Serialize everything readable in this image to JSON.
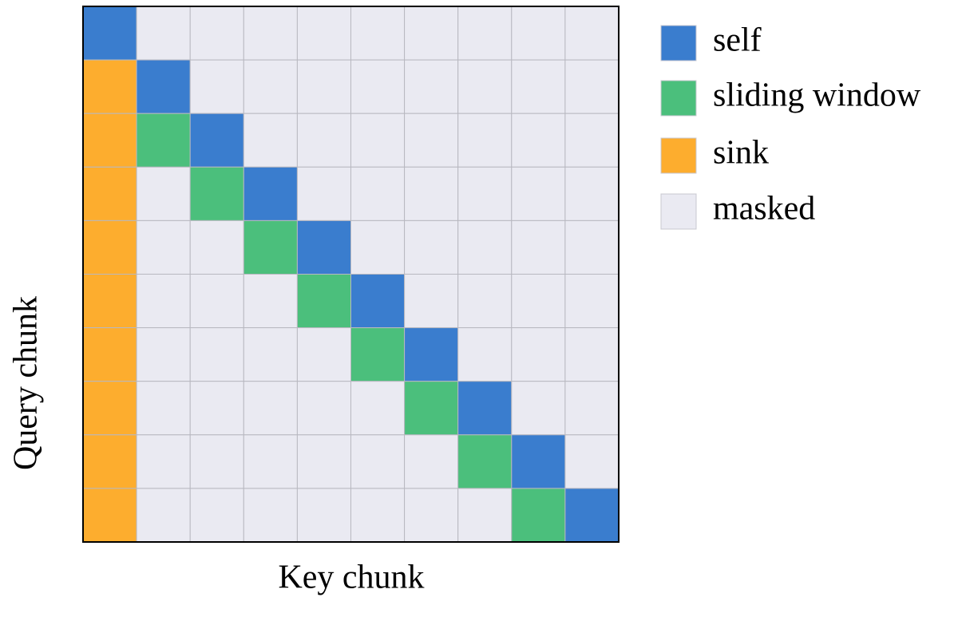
{
  "axes": {
    "x_label": "Key chunk",
    "y_label": "Query chunk"
  },
  "legend": [
    {
      "label": "self",
      "color": "#3a7dce"
    },
    {
      "label": "sliding window",
      "color": "#4bbf7c"
    },
    {
      "label": "sink",
      "color": "#fdad2e"
    },
    {
      "label": "masked",
      "color": "#eaeaf2"
    }
  ]
}
